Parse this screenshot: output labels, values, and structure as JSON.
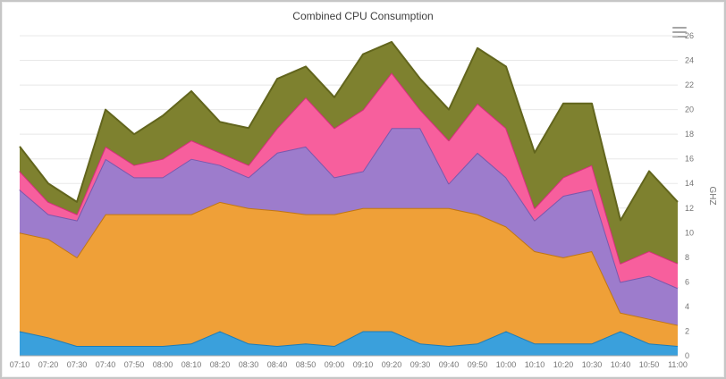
{
  "chrome": {
    "export_menu_icon": "hamburger-menu"
  },
  "chart_data": {
    "type": "area",
    "stacked": true,
    "title": "Combined CPU Consumption",
    "xlabel": "",
    "ylabel": "GHZ",
    "ylim": [
      0,
      26
    ],
    "y_step": 2,
    "grid": true,
    "legend": "none",
    "y_axis_position": "right",
    "x": [
      "07:10",
      "07:20",
      "07:30",
      "07:40",
      "07:50",
      "08:00",
      "08:10",
      "08:20",
      "08:30",
      "08:40",
      "08:50",
      "09:00",
      "09:10",
      "09:20",
      "09:30",
      "09:40",
      "09:50",
      "10:00",
      "10:10",
      "10:20",
      "10:30",
      "10:40",
      "10:50",
      "11:00"
    ],
    "series": [
      {
        "name": "series-blue",
        "fill": "#3aa0dc",
        "stroke": "#1c7cb8",
        "values": [
          2.0,
          1.5,
          0.8,
          0.8,
          0.8,
          0.8,
          1.0,
          2.0,
          1.0,
          0.8,
          1.0,
          0.8,
          2.0,
          2.0,
          1.0,
          0.8,
          1.0,
          2.0,
          1.0,
          1.0,
          1.0,
          2.0,
          1.0,
          0.8
        ]
      },
      {
        "name": "series-orange",
        "fill": "#efa038",
        "stroke": "#c07612",
        "values": [
          8.0,
          8.0,
          7.2,
          10.7,
          10.7,
          10.7,
          10.5,
          10.5,
          11.0,
          11.0,
          10.5,
          10.7,
          10.0,
          10.0,
          11.0,
          11.2,
          10.5,
          8.5,
          7.5,
          7.0,
          7.5,
          1.5,
          2.0,
          1.7
        ]
      },
      {
        "name": "series-purple",
        "fill": "#9d7ccc",
        "stroke": "#7a58ad",
        "values": [
          3.5,
          2.0,
          3.0,
          4.5,
          3.0,
          3.0,
          4.5,
          3.0,
          2.5,
          4.7,
          5.5,
          3.0,
          3.0,
          6.5,
          6.5,
          2.0,
          5.0,
          4.0,
          2.5,
          5.0,
          5.0,
          2.5,
          3.5,
          3.0
        ]
      },
      {
        "name": "series-pink",
        "fill": "#f75f9d",
        "stroke": "#d62d7c",
        "values": [
          1.5,
          1.0,
          0.5,
          1.0,
          1.0,
          1.5,
          1.5,
          1.0,
          1.0,
          2.0,
          4.0,
          4.0,
          5.0,
          4.5,
          1.5,
          3.5,
          4.0,
          4.0,
          1.0,
          1.5,
          2.0,
          1.5,
          2.0,
          2.0
        ]
      },
      {
        "name": "series-olive",
        "fill": "#7e812f",
        "stroke": "#62651d",
        "values": [
          2.0,
          1.5,
          1.0,
          3.0,
          2.5,
          3.5,
          4.0,
          2.5,
          3.0,
          4.0,
          2.5,
          2.5,
          4.5,
          2.5,
          2.5,
          2.5,
          4.5,
          5.0,
          4.5,
          6.0,
          5.0,
          3.5,
          6.5,
          5.0
        ]
      }
    ],
    "axis_colors": {
      "grid": "#e8e8e8",
      "axis_line": "#a8a8a8",
      "tick_text": "#767676"
    }
  }
}
